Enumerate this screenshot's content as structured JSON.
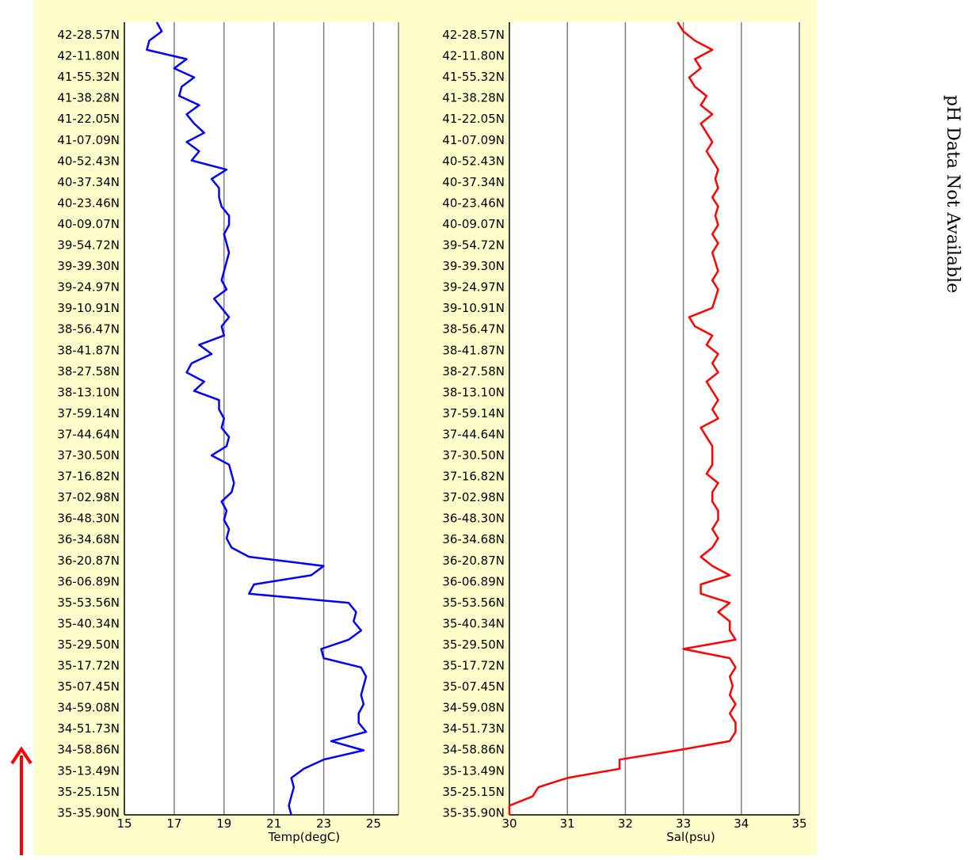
{
  "note": "pH Data Not Available",
  "colors": {
    "panel_bg": "#ffffcc",
    "plot_bg": "#ffffff",
    "grid": "#808080",
    "arrow": "#ff0000"
  },
  "chart_data": [
    {
      "type": "line",
      "xlabel": "Temp(degC)",
      "xlim": [
        15,
        26
      ],
      "xticks": [
        15,
        17,
        19,
        21,
        23,
        25
      ],
      "ytick_labels": [
        "42-28.57N",
        "42-11.80N",
        "41-55.32N",
        "41-38.28N",
        "41-22.05N",
        "41-07.09N",
        "40-52.43N",
        "40-37.34N",
        "40-23.46N",
        "40-09.07N",
        "39-54.72N",
        "39-39.30N",
        "39-24.97N",
        "39-10.91N",
        "38-56.47N",
        "38-41.87N",
        "38-27.58N",
        "38-13.10N",
        "37-59.14N",
        "37-44.64N",
        "37-30.50N",
        "37-16.82N",
        "37-02.98N",
        "36-48.30N",
        "36-34.68N",
        "36-20.87N",
        "36-06.89N",
        "35-53.56N",
        "35-40.34N",
        "35-29.50N",
        "35-17.72N",
        "35-07.45N",
        "34-59.08N",
        "34-51.73N",
        "34-58.86N",
        "35-13.49N",
        "35-25.15N",
        "35-35.90N"
      ],
      "color": "#0000ff",
      "series": [
        {
          "values": [
            16.3,
            16.5,
            16.0,
            15.9,
            17.5,
            17.0,
            17.8,
            17.3,
            17.2,
            18.0,
            17.5,
            17.8,
            18.2,
            17.5,
            18.0,
            17.7,
            19.1,
            18.5,
            18.8,
            18.8,
            18.9,
            19.2,
            19.2,
            19.0,
            19.1,
            19.2,
            19.1,
            19.0,
            18.9,
            19.1,
            18.6,
            18.9,
            19.2,
            18.9,
            19.0,
            18.0,
            18.5,
            17.7,
            17.5,
            18.2,
            17.8,
            18.8,
            18.8,
            19.0,
            18.9,
            19.2,
            19.1,
            18.5,
            19.2,
            19.3,
            19.4,
            19.3,
            18.9,
            19.1,
            19.0,
            19.2,
            19.1,
            19.3,
            20.0,
            23.0,
            22.5,
            20.2,
            20.0,
            24.0,
            24.3,
            24.2,
            24.5,
            24.0,
            22.9,
            23.0,
            24.5,
            24.7,
            24.6,
            24.5,
            24.6,
            24.4,
            24.4,
            24.7,
            23.3,
            24.6,
            23.0,
            22.2,
            21.7,
            21.8,
            21.7,
            21.6,
            21.7
          ]
        }
      ]
    },
    {
      "type": "line",
      "xlabel": "Sal(psu)",
      "xlim": [
        30,
        35
      ],
      "xticks": [
        30,
        31,
        32,
        33,
        34,
        35
      ],
      "ytick_labels": [
        "42-28.57N",
        "42-11.80N",
        "41-55.32N",
        "41-38.28N",
        "41-22.05N",
        "41-07.09N",
        "40-52.43N",
        "40-37.34N",
        "40-23.46N",
        "40-09.07N",
        "39-54.72N",
        "39-39.30N",
        "39-24.97N",
        "39-10.91N",
        "38-56.47N",
        "38-41.87N",
        "38-27.58N",
        "38-13.10N",
        "37-59.14N",
        "37-44.64N",
        "37-30.50N",
        "37-16.82N",
        "37-02.98N",
        "36-48.30N",
        "36-34.68N",
        "36-20.87N",
        "36-06.89N",
        "35-53.56N",
        "35-40.34N",
        "35-29.50N",
        "35-17.72N",
        "35-07.45N",
        "34-59.08N",
        "34-51.73N",
        "34-58.86N",
        "35-13.49N",
        "35-25.15N",
        "35-35.90N"
      ],
      "color": "#ff0000",
      "series": [
        {
          "values": [
            32.9,
            33.0,
            33.2,
            33.5,
            33.2,
            33.3,
            33.1,
            33.2,
            33.4,
            33.3,
            33.5,
            33.3,
            33.4,
            33.5,
            33.4,
            33.5,
            33.6,
            33.55,
            33.6,
            33.5,
            33.6,
            33.55,
            33.6,
            33.5,
            33.6,
            33.5,
            33.55,
            33.6,
            33.5,
            33.6,
            33.55,
            33.5,
            33.1,
            33.2,
            33.5,
            33.4,
            33.6,
            33.5,
            33.6,
            33.4,
            33.5,
            33.6,
            33.5,
            33.6,
            33.3,
            33.4,
            33.5,
            33.5,
            33.5,
            33.4,
            33.6,
            33.5,
            33.5,
            33.6,
            33.6,
            33.5,
            33.6,
            33.5,
            33.3,
            33.5,
            33.8,
            33.3,
            33.3,
            33.8,
            33.6,
            33.8,
            33.8,
            33.9,
            33.0,
            33.8,
            33.9,
            33.8,
            33.85,
            33.8,
            33.9,
            33.8,
            33.9,
            33.9,
            33.8,
            32.9,
            31.9,
            31.9,
            31.0,
            30.5,
            30.4,
            30.0,
            30.0
          ]
        }
      ]
    }
  ]
}
